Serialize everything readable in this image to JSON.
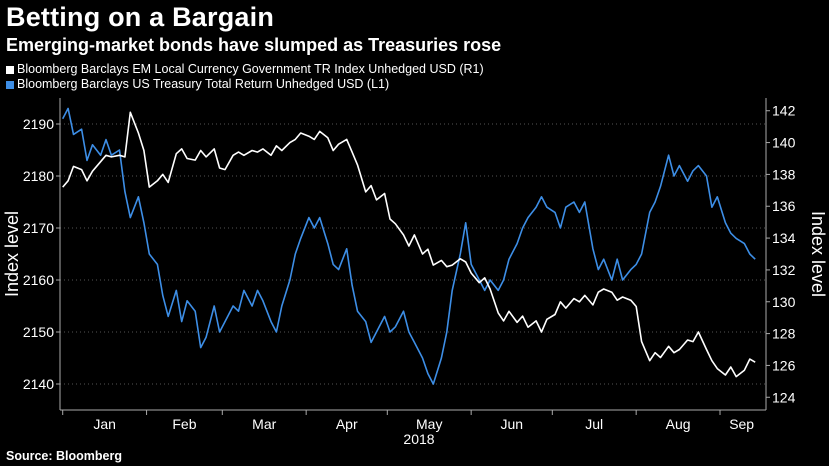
{
  "title": "Betting on a Bargain",
  "subtitle": "Emerging-market bonds have slumped as Treasuries rose",
  "source": "Source: Bloomberg",
  "colors": {
    "background": "#000000",
    "em_series": "#ffffff",
    "ust_series": "#3d8ee6",
    "grid": "#555555"
  },
  "chart_data": {
    "type": "line",
    "title": "Betting on a Bargain",
    "subtitle": "Emerging-market bonds have slumped as Treasuries rose",
    "x_tick_labels": [
      "Jan",
      "Feb",
      "Mar",
      "Apr",
      "May",
      "Jun",
      "Jul",
      "Aug",
      "Sep"
    ],
    "x_year_label": "2018",
    "y_left": {
      "label": "Index level",
      "range": [
        2135,
        2195
      ],
      "ticks": [
        2140,
        2150,
        2160,
        2170,
        2180,
        2190
      ]
    },
    "y_right": {
      "label": "Index level",
      "range": [
        123.2,
        142.8
      ],
      "ticks": [
        124,
        126,
        128,
        130,
        132,
        134,
        136,
        138,
        140,
        142
      ]
    },
    "grid": "horizontal dotted",
    "legend_position": "top-left",
    "series": [
      {
        "name": "Bloomberg Barclays EM Local Currency Government TR Index Unhedged USD  (R1)",
        "axis": "right",
        "color": "#ffffff",
        "points": [
          [
            "2018-01-01",
            137.2
          ],
          [
            "2018-01-03",
            137.6
          ],
          [
            "2018-01-05",
            138.5
          ],
          [
            "2018-01-08",
            138.3
          ],
          [
            "2018-01-10",
            137.6
          ],
          [
            "2018-01-12",
            138.2
          ],
          [
            "2018-01-15",
            138.8
          ],
          [
            "2018-01-17",
            139.2
          ],
          [
            "2018-01-19",
            139.1
          ],
          [
            "2018-01-22",
            139.2
          ],
          [
            "2018-01-24",
            139.1
          ],
          [
            "2018-01-26",
            141.9
          ],
          [
            "2018-01-29",
            140.6
          ],
          [
            "2018-01-31",
            139.5
          ],
          [
            "2018-02-02",
            137.2
          ],
          [
            "2018-02-05",
            137.6
          ],
          [
            "2018-02-07",
            138.0
          ],
          [
            "2018-02-09",
            137.5
          ],
          [
            "2018-02-12",
            139.3
          ],
          [
            "2018-02-14",
            139.6
          ],
          [
            "2018-02-16",
            139.0
          ],
          [
            "2018-02-19",
            138.9
          ],
          [
            "2018-02-21",
            139.5
          ],
          [
            "2018-02-23",
            139.1
          ],
          [
            "2018-02-26",
            139.6
          ],
          [
            "2018-02-28",
            138.4
          ],
          [
            "2018-03-02",
            138.3
          ],
          [
            "2018-03-05",
            139.2
          ],
          [
            "2018-03-07",
            139.4
          ],
          [
            "2018-03-09",
            139.2
          ],
          [
            "2018-03-12",
            139.5
          ],
          [
            "2018-03-14",
            139.4
          ],
          [
            "2018-03-16",
            139.6
          ],
          [
            "2018-03-19",
            139.2
          ],
          [
            "2018-03-21",
            139.8
          ],
          [
            "2018-03-23",
            139.5
          ],
          [
            "2018-03-26",
            140.0
          ],
          [
            "2018-03-28",
            140.2
          ],
          [
            "2018-03-30",
            140.6
          ],
          [
            "2018-04-02",
            140.4
          ],
          [
            "2018-04-04",
            140.2
          ],
          [
            "2018-04-06",
            140.7
          ],
          [
            "2018-04-09",
            140.3
          ],
          [
            "2018-04-11",
            139.5
          ],
          [
            "2018-04-13",
            139.9
          ],
          [
            "2018-04-16",
            140.2
          ],
          [
            "2018-04-18",
            139.4
          ],
          [
            "2018-04-20",
            138.6
          ],
          [
            "2018-04-23",
            136.9
          ],
          [
            "2018-04-25",
            137.3
          ],
          [
            "2018-04-27",
            136.4
          ],
          [
            "2018-04-30",
            136.8
          ],
          [
            "2018-05-02",
            135.2
          ],
          [
            "2018-05-04",
            134.9
          ],
          [
            "2018-05-07",
            134.2
          ],
          [
            "2018-05-09",
            133.5
          ],
          [
            "2018-05-11",
            134.2
          ],
          [
            "2018-05-14",
            133.0
          ],
          [
            "2018-05-16",
            133.3
          ],
          [
            "2018-05-18",
            132.3
          ],
          [
            "2018-05-21",
            132.6
          ],
          [
            "2018-05-23",
            132.2
          ],
          [
            "2018-05-25",
            132.3
          ],
          [
            "2018-05-28",
            132.7
          ],
          [
            "2018-05-30",
            132.5
          ],
          [
            "2018-06-01",
            131.8
          ],
          [
            "2018-06-04",
            131.2
          ],
          [
            "2018-06-06",
            131.5
          ],
          [
            "2018-06-08",
            130.8
          ],
          [
            "2018-06-11",
            129.3
          ],
          [
            "2018-06-13",
            128.8
          ],
          [
            "2018-06-15",
            129.4
          ],
          [
            "2018-06-18",
            128.7
          ],
          [
            "2018-06-20",
            129.1
          ],
          [
            "2018-06-22",
            128.4
          ],
          [
            "2018-06-25",
            128.8
          ],
          [
            "2018-06-27",
            128.1
          ],
          [
            "2018-06-29",
            128.9
          ],
          [
            "2018-07-02",
            129.2
          ],
          [
            "2018-07-04",
            130.0
          ],
          [
            "2018-07-06",
            129.6
          ],
          [
            "2018-07-09",
            130.2
          ],
          [
            "2018-07-11",
            130.0
          ],
          [
            "2018-07-13",
            130.4
          ],
          [
            "2018-07-16",
            129.8
          ],
          [
            "2018-07-18",
            130.6
          ],
          [
            "2018-07-20",
            130.8
          ],
          [
            "2018-07-23",
            130.6
          ],
          [
            "2018-07-25",
            130.1
          ],
          [
            "2018-07-27",
            130.3
          ],
          [
            "2018-07-30",
            130.1
          ],
          [
            "2018-08-01",
            129.7
          ],
          [
            "2018-08-03",
            127.5
          ],
          [
            "2018-08-06",
            126.3
          ],
          [
            "2018-08-08",
            126.8
          ],
          [
            "2018-08-10",
            126.5
          ],
          [
            "2018-08-13",
            127.2
          ],
          [
            "2018-08-15",
            126.8
          ],
          [
            "2018-08-17",
            127.0
          ],
          [
            "2018-08-20",
            127.6
          ],
          [
            "2018-08-22",
            127.5
          ],
          [
            "2018-08-24",
            128.1
          ],
          [
            "2018-08-27",
            127.0
          ],
          [
            "2018-08-29",
            126.3
          ],
          [
            "2018-08-31",
            125.8
          ],
          [
            "2018-09-03",
            125.4
          ],
          [
            "2018-09-05",
            125.9
          ],
          [
            "2018-09-07",
            125.3
          ],
          [
            "2018-09-10",
            125.7
          ],
          [
            "2018-09-12",
            126.4
          ],
          [
            "2018-09-14",
            126.2
          ]
        ]
      },
      {
        "name": "Bloomberg Barclays US Treasury Total Return Unhedged USD  (L1)",
        "axis": "left",
        "color": "#3d8ee6",
        "points": [
          [
            "2018-01-01",
            2191
          ],
          [
            "2018-01-03",
            2193
          ],
          [
            "2018-01-05",
            2188
          ],
          [
            "2018-01-08",
            2189
          ],
          [
            "2018-01-10",
            2183
          ],
          [
            "2018-01-12",
            2186
          ],
          [
            "2018-01-15",
            2184
          ],
          [
            "2018-01-17",
            2187
          ],
          [
            "2018-01-19",
            2184
          ],
          [
            "2018-01-22",
            2185
          ],
          [
            "2018-01-24",
            2177
          ],
          [
            "2018-01-26",
            2172
          ],
          [
            "2018-01-29",
            2176
          ],
          [
            "2018-01-31",
            2171
          ],
          [
            "2018-02-02",
            2165
          ],
          [
            "2018-02-05",
            2163
          ],
          [
            "2018-02-07",
            2157
          ],
          [
            "2018-02-09",
            2153
          ],
          [
            "2018-02-12",
            2158
          ],
          [
            "2018-02-14",
            2152
          ],
          [
            "2018-02-16",
            2156
          ],
          [
            "2018-02-19",
            2154
          ],
          [
            "2018-02-21",
            2147
          ],
          [
            "2018-02-23",
            2149
          ],
          [
            "2018-02-26",
            2155
          ],
          [
            "2018-02-28",
            2150
          ],
          [
            "2018-03-02",
            2152
          ],
          [
            "2018-03-05",
            2155
          ],
          [
            "2018-03-07",
            2154
          ],
          [
            "2018-03-09",
            2158
          ],
          [
            "2018-03-12",
            2155
          ],
          [
            "2018-03-14",
            2158
          ],
          [
            "2018-03-16",
            2156
          ],
          [
            "2018-03-19",
            2152
          ],
          [
            "2018-03-21",
            2150
          ],
          [
            "2018-03-23",
            2155
          ],
          [
            "2018-03-26",
            2160
          ],
          [
            "2018-03-28",
            2165
          ],
          [
            "2018-03-30",
            2168
          ],
          [
            "2018-04-02",
            2172
          ],
          [
            "2018-04-04",
            2170
          ],
          [
            "2018-04-06",
            2172
          ],
          [
            "2018-04-09",
            2167
          ],
          [
            "2018-04-11",
            2163
          ],
          [
            "2018-04-13",
            2162
          ],
          [
            "2018-04-16",
            2166
          ],
          [
            "2018-04-18",
            2159
          ],
          [
            "2018-04-20",
            2154
          ],
          [
            "2018-04-23",
            2152
          ],
          [
            "2018-04-25",
            2148
          ],
          [
            "2018-04-27",
            2150
          ],
          [
            "2018-04-30",
            2153
          ],
          [
            "2018-05-02",
            2150
          ],
          [
            "2018-05-04",
            2151
          ],
          [
            "2018-05-07",
            2154
          ],
          [
            "2018-05-09",
            2150
          ],
          [
            "2018-05-11",
            2148
          ],
          [
            "2018-05-14",
            2145
          ],
          [
            "2018-05-16",
            2142
          ],
          [
            "2018-05-18",
            2140
          ],
          [
            "2018-05-21",
            2145
          ],
          [
            "2018-05-23",
            2150
          ],
          [
            "2018-05-25",
            2158
          ],
          [
            "2018-05-28",
            2165
          ],
          [
            "2018-05-30",
            2171
          ],
          [
            "2018-06-01",
            2163
          ],
          [
            "2018-06-04",
            2160
          ],
          [
            "2018-06-06",
            2158
          ],
          [
            "2018-06-08",
            2160
          ],
          [
            "2018-06-11",
            2158
          ],
          [
            "2018-06-13",
            2160
          ],
          [
            "2018-06-15",
            2164
          ],
          [
            "2018-06-18",
            2167
          ],
          [
            "2018-06-20",
            2170
          ],
          [
            "2018-06-22",
            2172
          ],
          [
            "2018-06-25",
            2174
          ],
          [
            "2018-06-27",
            2176
          ],
          [
            "2018-06-29",
            2174
          ],
          [
            "2018-07-02",
            2173
          ],
          [
            "2018-07-04",
            2170
          ],
          [
            "2018-07-06",
            2174
          ],
          [
            "2018-07-09",
            2175
          ],
          [
            "2018-07-11",
            2173
          ],
          [
            "2018-07-13",
            2175
          ],
          [
            "2018-07-16",
            2166
          ],
          [
            "2018-07-18",
            2162
          ],
          [
            "2018-07-20",
            2164
          ],
          [
            "2018-07-23",
            2160
          ],
          [
            "2018-07-25",
            2164
          ],
          [
            "2018-07-27",
            2160
          ],
          [
            "2018-07-30",
            2162
          ],
          [
            "2018-08-01",
            2163
          ],
          [
            "2018-08-03",
            2165
          ],
          [
            "2018-08-06",
            2173
          ],
          [
            "2018-08-08",
            2175
          ],
          [
            "2018-08-10",
            2178
          ],
          [
            "2018-08-13",
            2184
          ],
          [
            "2018-08-15",
            2180
          ],
          [
            "2018-08-17",
            2182
          ],
          [
            "2018-08-20",
            2179
          ],
          [
            "2018-08-22",
            2181
          ],
          [
            "2018-08-24",
            2182
          ],
          [
            "2018-08-27",
            2180
          ],
          [
            "2018-08-29",
            2174
          ],
          [
            "2018-08-31",
            2176
          ],
          [
            "2018-09-03",
            2171
          ],
          [
            "2018-09-05",
            2169
          ],
          [
            "2018-09-07",
            2168
          ],
          [
            "2018-09-10",
            2167
          ],
          [
            "2018-09-12",
            2165
          ],
          [
            "2018-09-14",
            2164
          ]
        ]
      }
    ]
  }
}
